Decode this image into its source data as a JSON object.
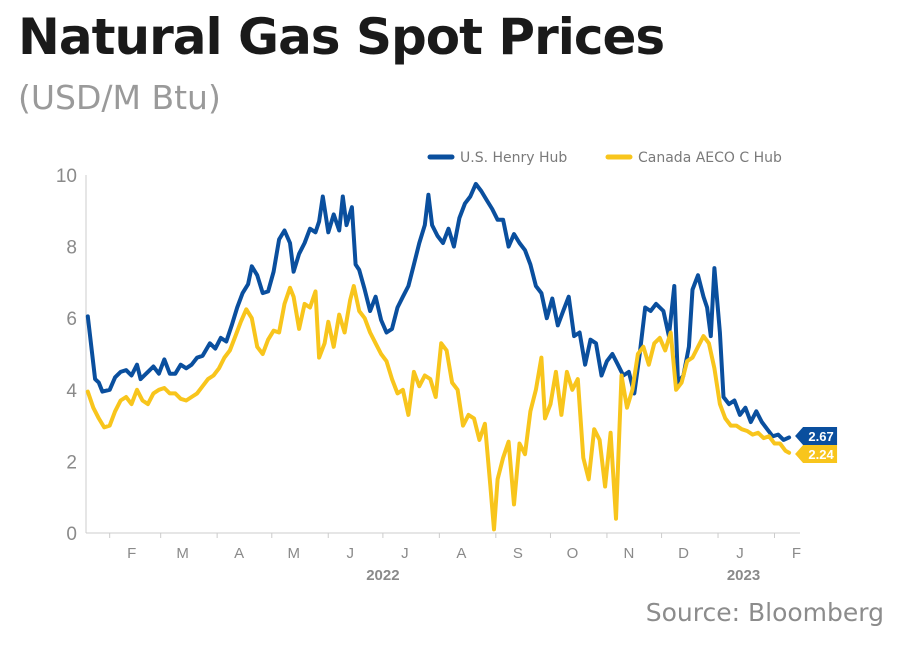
{
  "chart_data": {
    "type": "line",
    "title": "Natural Gas Spot Prices",
    "subtitle": "(USD/M Btu)",
    "source": "Source: Bloomberg",
    "xlabel": "",
    "ylabel": "",
    "ylim": [
      0,
      10
    ],
    "yticks": [
      "0",
      "2",
      "4",
      "6",
      "8",
      "10"
    ],
    "xlim": [
      "2022-01-19",
      "2023-02-15"
    ],
    "month_ticks": [
      {
        "label": "F",
        "date": "2022-02-01"
      },
      {
        "label": "M",
        "date": "2022-03-01"
      },
      {
        "label": "A",
        "date": "2022-04-01"
      },
      {
        "label": "M",
        "date": "2022-05-01"
      },
      {
        "label": "J",
        "date": "2022-06-01"
      },
      {
        "label": "J",
        "date": "2022-07-01"
      },
      {
        "label": "A",
        "date": "2022-08-01"
      },
      {
        "label": "S",
        "date": "2022-09-01"
      },
      {
        "label": "O",
        "date": "2022-10-01"
      },
      {
        "label": "N",
        "date": "2022-11-01"
      },
      {
        "label": "D",
        "date": "2022-12-01"
      },
      {
        "label": "J",
        "date": "2023-01-01"
      },
      {
        "label": "F",
        "date": "2023-02-01"
      }
    ],
    "year_labels": [
      {
        "label": "2022",
        "date": "2022-07-01"
      },
      {
        "label": "2023",
        "date": "2023-01-15"
      }
    ],
    "grid": false,
    "legend_position": "top-right",
    "series": [
      {
        "name": "U.S. Henry Hub",
        "color": "#0a4f9e",
        "end_label": "2.67",
        "points": [
          [
            "2022-01-20",
            6.05
          ],
          [
            "2022-01-24",
            4.3
          ],
          [
            "2022-01-26",
            4.2
          ],
          [
            "2022-01-28",
            3.95
          ],
          [
            "2022-02-01",
            4.0
          ],
          [
            "2022-02-04",
            4.35
          ],
          [
            "2022-02-07",
            4.5
          ],
          [
            "2022-02-10",
            4.55
          ],
          [
            "2022-02-13",
            4.4
          ],
          [
            "2022-02-16",
            4.7
          ],
          [
            "2022-02-18",
            4.3
          ],
          [
            "2022-02-22",
            4.5
          ],
          [
            "2022-02-25",
            4.65
          ],
          [
            "2022-02-28",
            4.45
          ],
          [
            "2022-03-03",
            4.85
          ],
          [
            "2022-03-06",
            4.45
          ],
          [
            "2022-03-09",
            4.45
          ],
          [
            "2022-03-12",
            4.7
          ],
          [
            "2022-03-15",
            4.6
          ],
          [
            "2022-03-18",
            4.7
          ],
          [
            "2022-03-21",
            4.9
          ],
          [
            "2022-03-24",
            4.95
          ],
          [
            "2022-03-28",
            5.3
          ],
          [
            "2022-03-31",
            5.15
          ],
          [
            "2022-04-03",
            5.45
          ],
          [
            "2022-04-06",
            5.35
          ],
          [
            "2022-04-09",
            5.8
          ],
          [
            "2022-04-12",
            6.3
          ],
          [
            "2022-04-15",
            6.7
          ],
          [
            "2022-04-18",
            6.95
          ],
          [
            "2022-04-20",
            7.45
          ],
          [
            "2022-04-23",
            7.2
          ],
          [
            "2022-04-26",
            6.7
          ],
          [
            "2022-04-29",
            6.75
          ],
          [
            "2022-05-02",
            7.3
          ],
          [
            "2022-05-05",
            8.2
          ],
          [
            "2022-05-08",
            8.45
          ],
          [
            "2022-05-11",
            8.1
          ],
          [
            "2022-05-13",
            7.3
          ],
          [
            "2022-05-16",
            7.8
          ],
          [
            "2022-05-19",
            8.1
          ],
          [
            "2022-05-22",
            8.5
          ],
          [
            "2022-05-25",
            8.4
          ],
          [
            "2022-05-27",
            8.7
          ],
          [
            "2022-05-29",
            9.4
          ],
          [
            "2022-06-01",
            8.4
          ],
          [
            "2022-06-04",
            8.9
          ],
          [
            "2022-06-07",
            8.45
          ],
          [
            "2022-06-09",
            9.4
          ],
          [
            "2022-06-11",
            8.6
          ],
          [
            "2022-06-14",
            9.1
          ],
          [
            "2022-06-16",
            7.5
          ],
          [
            "2022-06-18",
            7.35
          ],
          [
            "2022-06-21",
            6.8
          ],
          [
            "2022-06-24",
            6.2
          ],
          [
            "2022-06-27",
            6.6
          ],
          [
            "2022-06-30",
            5.95
          ],
          [
            "2022-07-03",
            5.6
          ],
          [
            "2022-07-06",
            5.7
          ],
          [
            "2022-07-09",
            6.3
          ],
          [
            "2022-07-12",
            6.6
          ],
          [
            "2022-07-15",
            6.9
          ],
          [
            "2022-07-18",
            7.5
          ],
          [
            "2022-07-21",
            8.1
          ],
          [
            "2022-07-24",
            8.6
          ],
          [
            "2022-07-26",
            9.45
          ],
          [
            "2022-07-28",
            8.6
          ],
          [
            "2022-07-31",
            8.3
          ],
          [
            "2022-08-03",
            8.1
          ],
          [
            "2022-08-06",
            8.5
          ],
          [
            "2022-08-09",
            8.0
          ],
          [
            "2022-08-12",
            8.8
          ],
          [
            "2022-08-15",
            9.2
          ],
          [
            "2022-08-18",
            9.4
          ],
          [
            "2022-08-21",
            9.75
          ],
          [
            "2022-08-24",
            9.55
          ],
          [
            "2022-08-27",
            9.3
          ],
          [
            "2022-08-30",
            9.05
          ],
          [
            "2022-09-02",
            8.75
          ],
          [
            "2022-09-05",
            8.75
          ],
          [
            "2022-09-08",
            8.0
          ],
          [
            "2022-09-11",
            8.35
          ],
          [
            "2022-09-14",
            8.1
          ],
          [
            "2022-09-17",
            7.9
          ],
          [
            "2022-09-20",
            7.5
          ],
          [
            "2022-09-23",
            6.9
          ],
          [
            "2022-09-26",
            6.7
          ],
          [
            "2022-09-29",
            6.0
          ],
          [
            "2022-10-02",
            6.55
          ],
          [
            "2022-10-05",
            5.8
          ],
          [
            "2022-10-08",
            6.2
          ],
          [
            "2022-10-11",
            6.6
          ],
          [
            "2022-10-14",
            5.5
          ],
          [
            "2022-10-17",
            5.6
          ],
          [
            "2022-10-20",
            4.7
          ],
          [
            "2022-10-23",
            5.4
          ],
          [
            "2022-10-26",
            5.3
          ],
          [
            "2022-10-29",
            4.4
          ],
          [
            "2022-11-01",
            4.8
          ],
          [
            "2022-11-04",
            5.0
          ],
          [
            "2022-11-07",
            4.7
          ],
          [
            "2022-11-10",
            4.4
          ],
          [
            "2022-11-13",
            4.5
          ],
          [
            "2022-11-16",
            3.9
          ],
          [
            "2022-11-19",
            5.0
          ],
          [
            "2022-11-22",
            6.3
          ],
          [
            "2022-11-25",
            6.2
          ],
          [
            "2022-11-28",
            6.4
          ],
          [
            "2022-11-30",
            6.3
          ],
          [
            "2022-12-02",
            6.2
          ],
          [
            "2022-12-05",
            5.5
          ],
          [
            "2022-12-08",
            6.9
          ],
          [
            "2022-12-10",
            4.2
          ],
          [
            "2022-12-13",
            4.4
          ],
          [
            "2022-12-16",
            5.2
          ],
          [
            "2022-12-18",
            6.8
          ],
          [
            "2022-12-21",
            7.2
          ],
          [
            "2022-12-24",
            6.6
          ],
          [
            "2022-12-26",
            6.3
          ],
          [
            "2022-12-28",
            5.5
          ],
          [
            "2022-12-30",
            7.4
          ],
          [
            "2023-01-02",
            5.6
          ],
          [
            "2023-01-04",
            3.8
          ],
          [
            "2023-01-07",
            3.6
          ],
          [
            "2023-01-10",
            3.7
          ],
          [
            "2023-01-13",
            3.3
          ],
          [
            "2023-01-16",
            3.5
          ],
          [
            "2023-01-19",
            3.1
          ],
          [
            "2023-01-22",
            3.4
          ],
          [
            "2023-01-25",
            3.1
          ],
          [
            "2023-01-28",
            2.9
          ],
          [
            "2023-01-31",
            2.7
          ],
          [
            "2023-02-03",
            2.75
          ],
          [
            "2023-02-06",
            2.6
          ],
          [
            "2023-02-09",
            2.67
          ]
        ]
      },
      {
        "name": "Canada AECO C Hub",
        "color": "#f8c51c",
        "end_label": "2.24",
        "points": [
          [
            "2022-01-20",
            3.95
          ],
          [
            "2022-01-23",
            3.5
          ],
          [
            "2022-01-26",
            3.2
          ],
          [
            "2022-01-29",
            2.95
          ],
          [
            "2022-02-01",
            3.0
          ],
          [
            "2022-02-04",
            3.4
          ],
          [
            "2022-02-07",
            3.7
          ],
          [
            "2022-02-10",
            3.8
          ],
          [
            "2022-02-13",
            3.6
          ],
          [
            "2022-02-16",
            4.0
          ],
          [
            "2022-02-19",
            3.7
          ],
          [
            "2022-02-22",
            3.6
          ],
          [
            "2022-02-25",
            3.9
          ],
          [
            "2022-02-28",
            4.0
          ],
          [
            "2022-03-03",
            4.05
          ],
          [
            "2022-03-06",
            3.9
          ],
          [
            "2022-03-09",
            3.9
          ],
          [
            "2022-03-12",
            3.75
          ],
          [
            "2022-03-15",
            3.7
          ],
          [
            "2022-03-18",
            3.8
          ],
          [
            "2022-03-21",
            3.9
          ],
          [
            "2022-03-24",
            4.1
          ],
          [
            "2022-03-27",
            4.3
          ],
          [
            "2022-03-30",
            4.4
          ],
          [
            "2022-04-02",
            4.6
          ],
          [
            "2022-04-05",
            4.9
          ],
          [
            "2022-04-08",
            5.1
          ],
          [
            "2022-04-11",
            5.5
          ],
          [
            "2022-04-14",
            5.9
          ],
          [
            "2022-04-17",
            6.25
          ],
          [
            "2022-04-20",
            6.0
          ],
          [
            "2022-04-23",
            5.2
          ],
          [
            "2022-04-26",
            5.0
          ],
          [
            "2022-04-29",
            5.4
          ],
          [
            "2022-05-02",
            5.65
          ],
          [
            "2022-05-05",
            5.6
          ],
          [
            "2022-05-08",
            6.4
          ],
          [
            "2022-05-11",
            6.85
          ],
          [
            "2022-05-13",
            6.6
          ],
          [
            "2022-05-16",
            5.7
          ],
          [
            "2022-05-19",
            6.4
          ],
          [
            "2022-05-22",
            6.3
          ],
          [
            "2022-05-25",
            6.75
          ],
          [
            "2022-05-27",
            4.9
          ],
          [
            "2022-05-30",
            5.3
          ],
          [
            "2022-06-01",
            5.9
          ],
          [
            "2022-06-04",
            5.2
          ],
          [
            "2022-06-07",
            6.1
          ],
          [
            "2022-06-10",
            5.6
          ],
          [
            "2022-06-13",
            6.5
          ],
          [
            "2022-06-15",
            6.9
          ],
          [
            "2022-06-18",
            6.2
          ],
          [
            "2022-06-21",
            6.0
          ],
          [
            "2022-06-24",
            5.6
          ],
          [
            "2022-06-27",
            5.3
          ],
          [
            "2022-06-30",
            5.0
          ],
          [
            "2022-07-03",
            4.8
          ],
          [
            "2022-07-06",
            4.3
          ],
          [
            "2022-07-09",
            3.9
          ],
          [
            "2022-07-12",
            4.0
          ],
          [
            "2022-07-15",
            3.3
          ],
          [
            "2022-07-18",
            4.5
          ],
          [
            "2022-07-21",
            4.1
          ],
          [
            "2022-07-24",
            4.4
          ],
          [
            "2022-07-27",
            4.3
          ],
          [
            "2022-07-30",
            3.8
          ],
          [
            "2022-08-02",
            5.3
          ],
          [
            "2022-08-05",
            5.1
          ],
          [
            "2022-08-08",
            4.2
          ],
          [
            "2022-08-11",
            4.0
          ],
          [
            "2022-08-14",
            3.0
          ],
          [
            "2022-08-17",
            3.3
          ],
          [
            "2022-08-20",
            3.2
          ],
          [
            "2022-08-23",
            2.6
          ],
          [
            "2022-08-26",
            3.05
          ],
          [
            "2022-08-29",
            1.3
          ],
          [
            "2022-08-31",
            0.1
          ],
          [
            "2022-09-02",
            1.5
          ],
          [
            "2022-09-05",
            2.1
          ],
          [
            "2022-09-08",
            2.55
          ],
          [
            "2022-09-11",
            0.8
          ],
          [
            "2022-09-14",
            2.5
          ],
          [
            "2022-09-17",
            2.2
          ],
          [
            "2022-09-20",
            3.4
          ],
          [
            "2022-09-23",
            4.0
          ],
          [
            "2022-09-26",
            4.9
          ],
          [
            "2022-09-28",
            3.2
          ],
          [
            "2022-10-01",
            3.6
          ],
          [
            "2022-10-04",
            4.5
          ],
          [
            "2022-10-07",
            3.3
          ],
          [
            "2022-10-10",
            4.5
          ],
          [
            "2022-10-13",
            4.0
          ],
          [
            "2022-10-16",
            4.3
          ],
          [
            "2022-10-19",
            2.1
          ],
          [
            "2022-10-22",
            1.5
          ],
          [
            "2022-10-25",
            2.9
          ],
          [
            "2022-10-28",
            2.6
          ],
          [
            "2022-10-31",
            1.3
          ],
          [
            "2022-11-03",
            2.8
          ],
          [
            "2022-11-06",
            0.4
          ],
          [
            "2022-11-09",
            4.4
          ],
          [
            "2022-11-12",
            3.5
          ],
          [
            "2022-11-15",
            4.0
          ],
          [
            "2022-11-18",
            5.0
          ],
          [
            "2022-11-21",
            5.2
          ],
          [
            "2022-11-24",
            4.7
          ],
          [
            "2022-11-27",
            5.3
          ],
          [
            "2022-11-30",
            5.45
          ],
          [
            "2022-12-03",
            5.1
          ],
          [
            "2022-12-06",
            5.6
          ],
          [
            "2022-12-09",
            4.0
          ],
          [
            "2022-12-12",
            4.2
          ],
          [
            "2022-12-15",
            4.8
          ],
          [
            "2022-12-18",
            4.9
          ],
          [
            "2022-12-21",
            5.2
          ],
          [
            "2022-12-24",
            5.5
          ],
          [
            "2022-12-27",
            5.3
          ],
          [
            "2022-12-30",
            4.6
          ],
          [
            "2023-01-02",
            3.6
          ],
          [
            "2023-01-05",
            3.2
          ],
          [
            "2023-01-08",
            3.0
          ],
          [
            "2023-01-11",
            3.0
          ],
          [
            "2023-01-14",
            2.9
          ],
          [
            "2023-01-17",
            2.85
          ],
          [
            "2023-01-20",
            2.75
          ],
          [
            "2023-01-23",
            2.8
          ],
          [
            "2023-01-26",
            2.65
          ],
          [
            "2023-01-29",
            2.7
          ],
          [
            "2023-02-01",
            2.5
          ],
          [
            "2023-02-04",
            2.5
          ],
          [
            "2023-02-07",
            2.3
          ],
          [
            "2023-02-09",
            2.24
          ]
        ]
      }
    ]
  }
}
